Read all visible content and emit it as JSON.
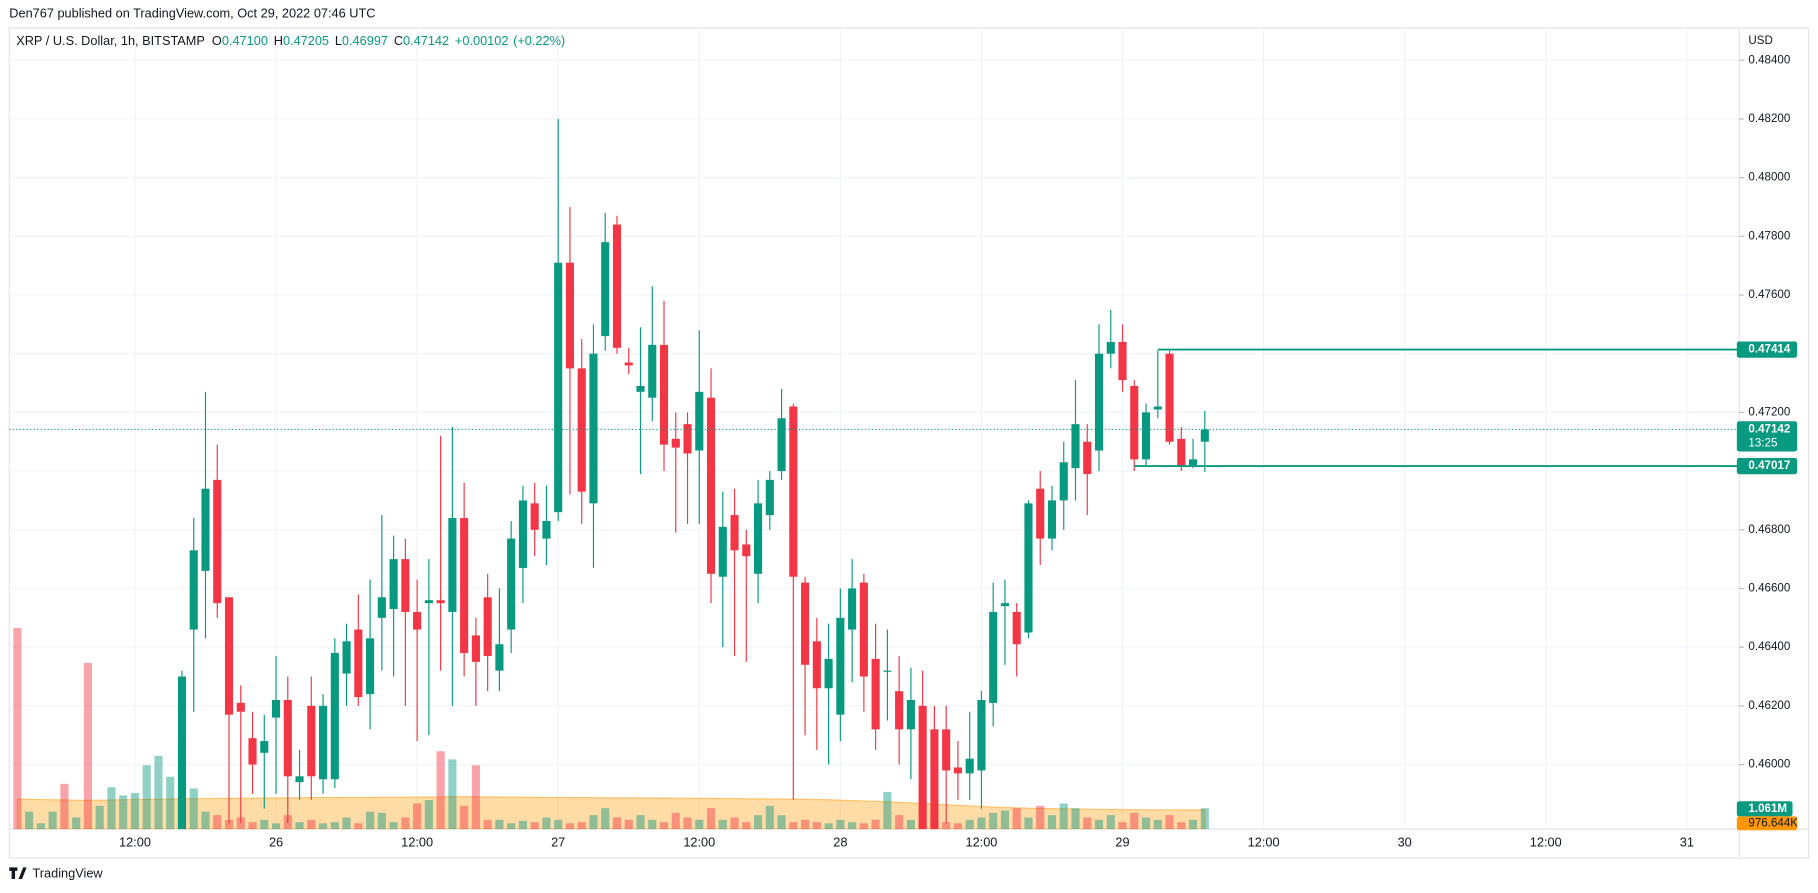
{
  "chart_data": {
    "type": "candlestick",
    "header": "Den767 published on TradingView.com, Oct 29, 2022 07:46 UTC",
    "legend": {
      "symbol": "XRP / U.S. Dollar, 1h, BITSTAMP",
      "items": [
        {
          "key": "O",
          "value": 0.471,
          "label": "0.47100"
        },
        {
          "key": "H",
          "value": 0.47205
        },
        {
          "key": "L",
          "value": 0.46997
        },
        {
          "key": "C",
          "value": 0.47142
        }
      ],
      "change": {
        "value": 0.00102,
        "label": "+0.00102"
      },
      "change_pct": {
        "value": 0.22,
        "label": "(+0.22%)"
      }
    },
    "currency": "USD",
    "countdown": "13:25",
    "footer": "TradingView",
    "up_color": "#089981",
    "down_color": "#f23645",
    "volume_up_color": "rgba(8,153,129,0.45)",
    "volume_down_color": "rgba(242,54,69,0.45)",
    "volume_ma_color": "#ff9800",
    "grid": true,
    "xlim": [
      -0.69,
      146.45
    ],
    "xticks": [
      {
        "value": 10,
        "label": "12:00"
      },
      {
        "value": 22,
        "label": "26"
      },
      {
        "value": 34,
        "label": "12:00"
      },
      {
        "value": 46,
        "label": "27"
      },
      {
        "value": 58,
        "label": "12:00"
      },
      {
        "value": 70,
        "label": "28"
      },
      {
        "value": 82,
        "label": "12:00"
      },
      {
        "value": 94,
        "label": "29"
      },
      {
        "value": 106,
        "label": "12:00"
      },
      {
        "value": 118,
        "label": "30"
      },
      {
        "value": 130,
        "label": "12:00"
      },
      {
        "value": 142,
        "label": "31"
      }
    ],
    "ylim": [
      0.4578,
      0.4851
    ],
    "yticks": [
      {
        "value": 0.46,
        "label": "0.46000"
      },
      {
        "value": 0.462,
        "label": "0.46200"
      },
      {
        "value": 0.464,
        "label": "0.46400"
      },
      {
        "value": 0.466,
        "label": "0.46600"
      },
      {
        "value": 0.468,
        "label": "0.46800"
      },
      {
        "value": 0.47,
        "label": "0.47000"
      },
      {
        "value": 0.472,
        "label": "0.47200"
      },
      {
        "value": 0.474,
        "label": "0.47400"
      },
      {
        "value": 0.476,
        "label": "0.47600"
      },
      {
        "value": 0.478,
        "label": "0.47800"
      },
      {
        "value": 0.48,
        "label": "0.48000"
      },
      {
        "value": 0.482,
        "label": "0.48200"
      },
      {
        "value": 0.484,
        "label": "0.48400"
      }
    ],
    "vlim": [
      0,
      40670000
    ],
    "open": [
      null,
      null,
      null,
      null,
      null,
      null,
      null,
      null,
      null,
      null,
      null,
      null,
      null,
      null,
      0.4578,
      0.4646,
      0.4666,
      0.4697,
      0.4657,
      0.4621,
      0.4609,
      0.4604,
      0.4616,
      0.4622,
      0.4594,
      0.462,
      0.4595,
      0.4595,
      0.4631,
      0.4646,
      0.4624,
      0.465,
      0.4653,
      0.467,
      0.4652,
      0.4655,
      0.4656,
      0.4652,
      0.4684,
      0.4644,
      0.4657,
      0.4632,
      0.4646,
      0.4667,
      0.4689,
      0.4677,
      0.4686,
      0.4771,
      0.4735,
      0.4689,
      0.4746,
      0.4784,
      0.4737,
      0.4727,
      0.4725,
      0.4743,
      0.4711,
      0.4716,
      0.4707,
      0.4725,
      0.4664,
      0.4685,
      0.4675,
      0.4665,
      0.4685,
      0.47,
      0.4722,
      0.4662,
      0.4642,
      0.4626,
      0.4617,
      0.4646,
      0.4662,
      0.4636,
      0.4632,
      0.4625,
      0.4612,
      0.462,
      0.4612,
      0.4612,
      0.4599,
      0.4597,
      0.4598,
      0.4621,
      0.4654,
      0.4652,
      0.4645,
      0.4694,
      0.4677,
      0.469,
      0.4701,
      0.471,
      0.4707,
      0.474,
      0.4744,
      0.4729,
      0.4704,
      0.4721,
      0.474,
      0.4711,
      0.4702,
      0.471
    ],
    "high": [
      null,
      null,
      null,
      null,
      null,
      null,
      null,
      null,
      null,
      null,
      null,
      null,
      null,
      null,
      0.4632,
      0.4684,
      0.4727,
      0.4709,
      0.4657,
      0.4627,
      0.4618,
      0.4617,
      0.4637,
      0.463,
      0.4605,
      0.463,
      0.4624,
      0.4643,
      0.4648,
      0.4658,
      0.4663,
      0.4685,
      0.4678,
      0.4677,
      0.4663,
      0.467,
      0.4712,
      0.4715,
      0.4696,
      0.465,
      0.4665,
      0.466,
      0.4683,
      0.4695,
      0.4696,
      0.4695,
      0.482,
      0.479,
      0.4745,
      0.475,
      0.4788,
      0.4787,
      0.4742,
      0.4749,
      0.4763,
      0.4758,
      0.472,
      0.472,
      0.4748,
      0.4735,
      0.4693,
      0.4694,
      0.468,
      0.4697,
      0.47,
      0.4728,
      0.4723,
      0.4664,
      0.465,
      0.4648,
      0.466,
      0.467,
      0.4665,
      0.4648,
      0.4646,
      0.4637,
      0.4633,
      0.4632,
      0.462,
      0.462,
      0.4608,
      0.4618,
      0.4625,
      0.4662,
      0.4663,
      0.4655,
      0.469,
      0.47,
      0.4695,
      0.471,
      0.4731,
      0.4716,
      0.475,
      0.4755,
      0.475,
      0.4731,
      0.4723,
      0.4741,
      0.4741,
      0.4715,
      0.4711,
      0.47205
    ],
    "low": [
      null,
      null,
      null,
      null,
      null,
      null,
      null,
      null,
      null,
      null,
      null,
      null,
      null,
      null,
      0.457,
      0.4618,
      0.4643,
      0.465,
      0.458,
      0.458,
      0.459,
      0.4585,
      0.459,
      0.458,
      0.4588,
      0.4588,
      0.459,
      0.4592,
      0.462,
      0.462,
      0.4612,
      0.4632,
      0.463,
      0.462,
      0.4608,
      0.461,
      0.4632,
      0.462,
      0.463,
      0.462,
      0.4625,
      0.4625,
      0.4638,
      0.4655,
      0.4671,
      0.4668,
      0.4683,
      0.4692,
      0.4682,
      0.4667,
      0.4741,
      0.474,
      0.4733,
      0.4699,
      0.4717,
      0.47,
      0.4679,
      0.4682,
      0.4682,
      0.4655,
      0.464,
      0.4637,
      0.4635,
      0.4655,
      0.468,
      0.4697,
      0.4588,
      0.461,
      0.4605,
      0.46,
      0.4608,
      0.4628,
      0.4618,
      0.4605,
      0.4615,
      0.46,
      0.4595,
      0.457,
      0.457,
      0.458,
      0.4588,
      0.4588,
      0.4585,
      0.4613,
      0.4634,
      0.463,
      0.4643,
      0.4668,
      0.4673,
      0.468,
      0.469,
      0.4685,
      0.47,
      0.4735,
      0.4727,
      0.47,
      0.4702,
      0.4718,
      0.4709,
      0.47,
      0.4701,
      0.46997
    ],
    "close": [
      null,
      null,
      null,
      null,
      null,
      null,
      null,
      null,
      null,
      null,
      null,
      null,
      null,
      null,
      0.463,
      0.4673,
      0.4694,
      0.4655,
      0.4617,
      0.4618,
      0.46,
      0.4608,
      0.4622,
      0.4596,
      0.4596,
      0.4596,
      0.462,
      0.4638,
      0.4642,
      0.4623,
      0.4643,
      0.4657,
      0.467,
      0.4652,
      0.4646,
      0.4656,
      0.4655,
      0.4684,
      0.4638,
      0.4635,
      0.4637,
      0.4641,
      0.4677,
      0.469,
      0.468,
      0.4683,
      0.4771,
      0.4735,
      0.4693,
      0.474,
      0.4778,
      0.4742,
      0.4736,
      0.4729,
      0.4743,
      0.4709,
      0.4708,
      0.4706,
      0.4727,
      0.4665,
      0.4681,
      0.4673,
      0.4671,
      0.4689,
      0.4697,
      0.4718,
      0.4664,
      0.4634,
      0.4626,
      0.4636,
      0.465,
      0.466,
      0.463,
      0.4612,
      0.4632,
      0.4612,
      0.4622,
      0.4578,
      0.4578,
      0.4598,
      0.4597,
      0.4602,
      0.4622,
      0.4652,
      0.4655,
      0.4641,
      0.4689,
      0.4677,
      0.469,
      0.4703,
      0.4716,
      0.4699,
      0.474,
      0.4744,
      0.4731,
      0.4704,
      0.472,
      0.4722,
      0.471,
      0.4702,
      0.4704,
      0.47142
    ],
    "volume": [
      10207000,
      885000,
      295000,
      885000,
      2301000,
      590000,
      8437000,
      1180000,
      2124000,
      1711000,
      1829000,
      3245000,
      3717000,
      2655000,
      4602000,
      2065000,
      885000,
      708000,
      472000,
      590000,
      354000,
      472000,
      295000,
      708000,
      354000,
      472000,
      295000,
      354000,
      590000,
      295000,
      885000,
      826000,
      354000,
      590000,
      1298000,
      1475000,
      3953000,
      3540000,
      1180000,
      3245000,
      472000,
      472000,
      295000,
      413000,
      354000,
      590000,
      472000,
      295000,
      354000,
      708000,
      1062000,
      590000,
      472000,
      708000,
      472000,
      354000,
      826000,
      590000,
      472000,
      1062000,
      472000,
      590000,
      354000,
      708000,
      1180000,
      708000,
      354000,
      472000,
      354000,
      295000,
      472000,
      354000,
      295000,
      472000,
      1888000,
      708000,
      472000,
      354000,
      472000,
      354000,
      295000,
      472000,
      590000,
      826000,
      944000,
      1062000,
      590000,
      1180000,
      708000,
      1298000,
      1062000,
      590000,
      472000,
      708000,
      354000,
      826000,
      590000,
      472000,
      708000,
      354000,
      472000,
      1061000
    ],
    "volume_up": [
      false,
      true,
      true,
      true,
      false,
      true,
      false,
      true,
      true,
      true,
      true,
      true,
      true,
      true,
      null,
      null,
      null,
      null,
      null,
      null,
      null,
      null,
      null,
      null,
      null,
      null,
      null,
      null,
      null,
      null,
      null,
      null,
      null,
      null,
      null,
      null,
      null,
      null,
      null,
      null,
      null,
      null,
      null,
      null,
      null,
      null,
      null,
      null,
      null,
      null,
      null,
      null,
      null,
      null,
      null,
      null,
      null,
      null,
      null,
      null,
      null,
      null,
      null,
      null,
      null,
      null,
      null,
      null,
      null,
      null,
      null,
      null,
      null,
      null,
      null,
      null,
      null,
      null,
      null,
      null,
      null,
      null,
      null,
      null,
      null,
      null,
      null,
      null,
      null,
      null,
      null,
      null,
      null,
      null,
      null,
      null,
      null,
      null,
      null,
      null
    ],
    "volume_ma": [
      1520000,
      1510000,
      1500000,
      1490000,
      1480000,
      1470000,
      1460000,
      1470000,
      1480000,
      1490000,
      1500000,
      1510000,
      1520000,
      1530000,
      1540000,
      1550000,
      1550000,
      1560000,
      1560000,
      1570000,
      1570000,
      1580000,
      1580000,
      1590000,
      1590000,
      1600000,
      1600000,
      1600000,
      1610000,
      1610000,
      1610000,
      1620000,
      1620000,
      1620000,
      1630000,
      1630000,
      1640000,
      1650000,
      1650000,
      1640000,
      1640000,
      1630000,
      1630000,
      1620000,
      1620000,
      1610000,
      1610000,
      1600000,
      1600000,
      1600000,
      1590000,
      1590000,
      1590000,
      1580000,
      1580000,
      1580000,
      1570000,
      1570000,
      1560000,
      1560000,
      1550000,
      1550000,
      1540000,
      1540000,
      1530000,
      1530000,
      1520000,
      1510000,
      1500000,
      1490000,
      1470000,
      1450000,
      1430000,
      1410000,
      1390000,
      1360000,
      1330000,
      1300000,
      1270000,
      1240000,
      1210000,
      1180000,
      1150000,
      1120000,
      1100000,
      1080000,
      1060000,
      1050000,
      1040000,
      1030000,
      1020000,
      1010000,
      1000000,
      995000,
      990000,
      985000,
      982000,
      980000,
      979000,
      978000,
      977000,
      976644
    ],
    "volume_label": "1.061M",
    "volume_ma_label": "976.644K",
    "levels": [
      {
        "value": 0.47414,
        "x_start": 97
      },
      {
        "value": 0.47017,
        "x_start": 95
      }
    ]
  }
}
